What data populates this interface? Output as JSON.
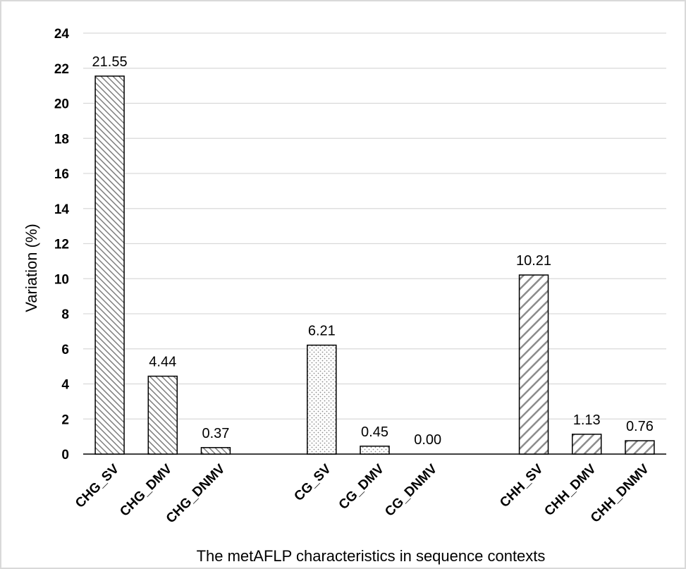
{
  "chart_data": {
    "type": "bar",
    "title": "",
    "xlabel": "The metAFLP characteristics in sequence contexts",
    "ylabel": "Variation (%)",
    "ylim": [
      0,
      24
    ],
    "yticks": [
      0,
      2,
      4,
      6,
      8,
      10,
      12,
      14,
      16,
      18,
      20,
      22,
      24
    ],
    "grid": true,
    "legend": "none",
    "categories": [
      "CHG_SV",
      "CHG_DMV",
      "CHG_DNMV",
      "CG_SV",
      "CG_DMV",
      "CG_DNMV",
      "CHH_SV",
      "CHH_DMV",
      "CHH_DNMV"
    ],
    "values": [
      21.55,
      4.44,
      0.37,
      6.21,
      0.45,
      0.0,
      10.21,
      1.13,
      0.76
    ],
    "data_labels": [
      "21.55",
      "4.44",
      "0.37",
      "6.21",
      "0.45",
      "0.00",
      "10.21",
      "1.13",
      "0.76"
    ],
    "groups": [
      {
        "context": "CHG",
        "pattern": "diagonal-dense"
      },
      {
        "context": "CG",
        "pattern": "dotted"
      },
      {
        "context": "CHH",
        "pattern": "diagonal-wide"
      }
    ],
    "colors": {
      "bar_stroke": "#000000",
      "hatch": "#7f7f7f",
      "grid": "#d9d9d9",
      "frame": "#d9d9d9"
    }
  }
}
